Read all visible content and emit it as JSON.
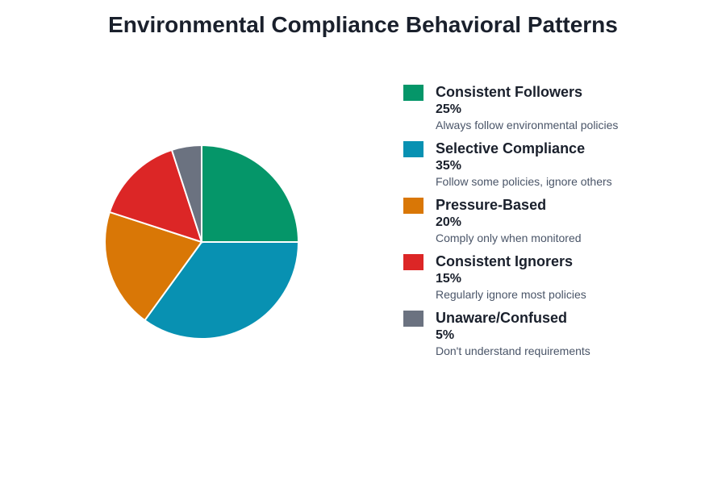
{
  "chart_data": {
    "type": "pie",
    "title": "Environmental Compliance Behavioral Patterns",
    "categories": [
      "Consistent Followers",
      "Selective Compliance",
      "Pressure-Based",
      "Consistent Ignorers",
      "Unaware/Confused"
    ],
    "values": [
      25,
      35,
      20,
      15,
      5
    ],
    "value_labels": [
      "25%",
      "35%",
      "20%",
      "15%",
      "5%"
    ],
    "descriptions": [
      "Always follow environmental policies",
      "Follow some policies, ignore others",
      "Comply only when monitored",
      "Regularly ignore most policies",
      "Don't understand requirements"
    ],
    "colors": [
      "#059669",
      "#0891b2",
      "#d97706",
      "#dc2626",
      "#6b7280"
    ]
  }
}
